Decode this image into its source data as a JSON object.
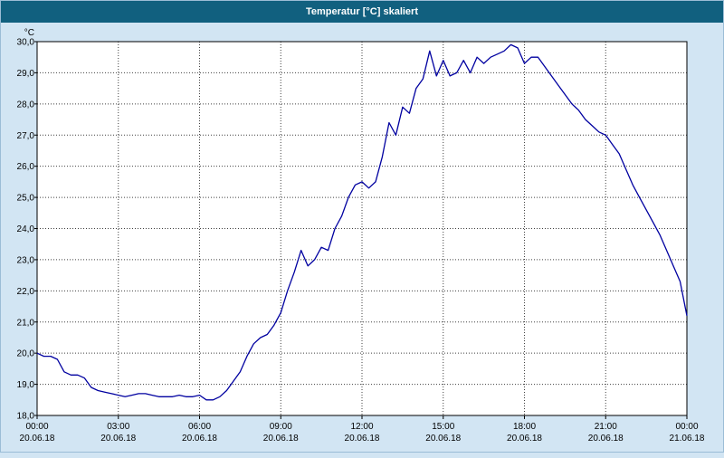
{
  "window": {
    "title": "Temperatur [°C] skaliert"
  },
  "colors": {
    "titlebar_bg": "#11607f",
    "titlebar_text": "#ffffff",
    "window_bg": "#d2e5f3",
    "plot_bg": "#ffffff",
    "plot_border": "#000000",
    "grid": "#404040",
    "line": "#0000a0",
    "axis_text": "#000000"
  },
  "chart_data": {
    "type": "line",
    "title": "Temperatur [°C] skaliert",
    "ylabel": "°C",
    "xlabel": "",
    "ylim": [
      18.0,
      30.0
    ],
    "x_range_hours": [
      0,
      24
    ],
    "grid": "dotted",
    "legend": "none",
    "start_time": "00:00",
    "x_interval_minutes": 15,
    "y_ticks": [
      {
        "value": 30,
        "label": "30,0"
      },
      {
        "value": 29,
        "label": "29,0"
      },
      {
        "value": 28,
        "label": "28,0"
      },
      {
        "value": 27,
        "label": "27,0"
      },
      {
        "value": 26,
        "label": "26,0"
      },
      {
        "value": 25,
        "label": "25,0"
      },
      {
        "value": 24,
        "label": "24,0"
      },
      {
        "value": 23,
        "label": "23,0"
      },
      {
        "value": 22,
        "label": "22,0"
      },
      {
        "value": 21,
        "label": "21,0"
      },
      {
        "value": 20,
        "label": "20,0"
      },
      {
        "value": 19,
        "label": "19,0"
      },
      {
        "value": 18,
        "label": "18,0"
      }
    ],
    "x_ticks": [
      {
        "hour": 0,
        "time": "00:00",
        "date": "20.06.18"
      },
      {
        "hour": 3,
        "time": "03:00",
        "date": "20.06.18"
      },
      {
        "hour": 6,
        "time": "06:00",
        "date": "20.06.18"
      },
      {
        "hour": 9,
        "time": "09:00",
        "date": "20.06.18"
      },
      {
        "hour": 12,
        "time": "12:00",
        "date": "20.06.18"
      },
      {
        "hour": 15,
        "time": "15:00",
        "date": "20.06.18"
      },
      {
        "hour": 18,
        "time": "18:00",
        "date": "20.06.18"
      },
      {
        "hour": 21,
        "time": "21:00",
        "date": "20.06.18"
      },
      {
        "hour": 24,
        "time": "00:00",
        "date": "21.06.18"
      }
    ],
    "series": [
      {
        "name": "Temperatur",
        "values": [
          20.0,
          19.9,
          19.9,
          19.8,
          19.4,
          19.3,
          19.3,
          19.2,
          18.9,
          18.8,
          18.75,
          18.7,
          18.65,
          18.6,
          18.65,
          18.7,
          18.7,
          18.65,
          18.6,
          18.6,
          18.6,
          18.65,
          18.6,
          18.6,
          18.65,
          18.5,
          18.5,
          18.6,
          18.8,
          19.1,
          19.4,
          19.9,
          20.3,
          20.5,
          20.6,
          20.9,
          21.3,
          22.0,
          22.6,
          23.3,
          22.8,
          23.0,
          23.4,
          23.3,
          24.0,
          24.4,
          25.0,
          25.4,
          25.5,
          25.3,
          25.5,
          26.3,
          27.4,
          27.0,
          27.9,
          27.7,
          28.5,
          28.8,
          29.7,
          28.9,
          29.4,
          28.9,
          29.0,
          29.4,
          29.0,
          29.5,
          29.3,
          29.5,
          29.6,
          29.7,
          29.9,
          29.8,
          29.3,
          29.5,
          29.5,
          29.2,
          28.9,
          28.6,
          28.3,
          28.0,
          27.8,
          27.5,
          27.3,
          27.1,
          27.0,
          26.7,
          26.4,
          25.9,
          25.4,
          25.0,
          24.6,
          24.2,
          23.8,
          23.3,
          22.8,
          22.3,
          21.2
        ]
      }
    ]
  }
}
